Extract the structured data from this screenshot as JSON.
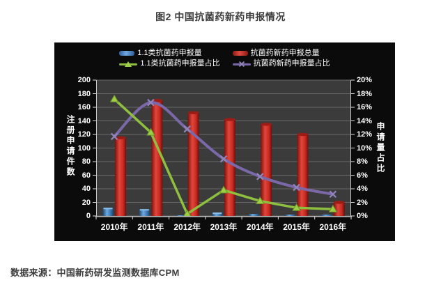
{
  "page": {
    "title": "图2 中国抗菌药新药申报情况",
    "source": "数据来源：中国新药研发监测数据库CPM"
  },
  "chart_data": {
    "type": "bar+line combo",
    "title": "图2 中国抗菌药新药申报情况",
    "categories": [
      "2010年",
      "2011年",
      "2012年",
      "2013年",
      "2014年",
      "2015年",
      "2016年"
    ],
    "series": [
      {
        "name": "1.1类抗菌药申报量",
        "type": "bar",
        "axis": "left",
        "color": "#4a86c6",
        "values": [
          12,
          10,
          1,
          5,
          3,
          2,
          2
        ]
      },
      {
        "name": "抗菌药新药申报总量",
        "type": "bar",
        "axis": "left",
        "color": "#cf3a30",
        "values": [
          115,
          170,
          152,
          142,
          135,
          120,
          20
        ]
      },
      {
        "name": "1.1类抗菌药申报量占比",
        "type": "line",
        "axis": "right",
        "color": "#8fbf3f",
        "marker": "triangle",
        "smooth": false,
        "values": [
          17.2,
          12.3,
          0.3,
          3.8,
          2.2,
          1.2,
          1.0
        ]
      },
      {
        "name": "抗菌药新药申报量占比",
        "type": "line",
        "axis": "right",
        "color": "#7b68a8",
        "marker": "x",
        "smooth": true,
        "values": [
          11.7,
          16.7,
          12.8,
          8.4,
          5.8,
          4.2,
          3.2
        ]
      }
    ],
    "left_axis": {
      "label": "注册申请件数",
      "min": 0,
      "max": 200,
      "step": 20,
      "ticks": [
        "200",
        "180",
        "160",
        "140",
        "120",
        "100",
        "80",
        "60",
        "40",
        "20",
        "0"
      ]
    },
    "right_axis": {
      "label": "申请量占比",
      "min": 0,
      "max": 20,
      "step": 2,
      "unit": "%",
      "ticks": [
        "20%",
        "18%",
        "16%",
        "14%",
        "12%",
        "10%",
        "8%",
        "6%",
        "4%",
        "2%",
        "0%"
      ]
    },
    "grid": true,
    "legend_position": "top",
    "colors": {
      "chart_bg": "#0b0b0b",
      "plot_bg": "#3b3b3b",
      "gridline": "#6a6a6a",
      "tick_text": "#ffffff"
    }
  }
}
